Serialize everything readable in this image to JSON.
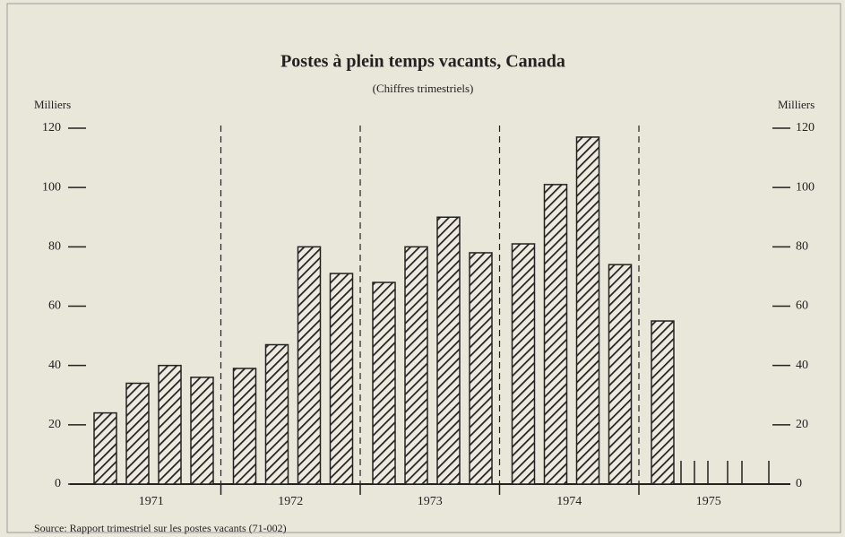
{
  "chart_data": {
    "type": "bar",
    "title": "Postes à plein temps vacants, Canada",
    "subtitle": "(Chiffres trimestriels)",
    "y_label": "Milliers",
    "y2_label": "Milliers",
    "source": "Source: Rapport trimestriel sur les postes vacants (71-002)",
    "years": [
      "1971",
      "1972",
      "1973",
      "1974",
      "1975"
    ],
    "categories": [
      null,
      null,
      null,
      null,
      null,
      null,
      null,
      null,
      null,
      null,
      null,
      null,
      null,
      null,
      null,
      null,
      null
    ],
    "values": [
      24,
      34,
      40,
      36,
      39,
      47,
      80,
      71,
      68,
      80,
      90,
      78,
      81,
      101,
      117,
      74,
      55
    ],
    "color": "#222222",
    "ylim": [
      0,
      120
    ],
    "yticks": [
      0,
      20,
      40,
      60,
      80,
      100,
      120
    ],
    "y2lim": [
      0,
      120
    ],
    "y2ticks": [
      0,
      20,
      40,
      60,
      80,
      100,
      120
    ]
  }
}
